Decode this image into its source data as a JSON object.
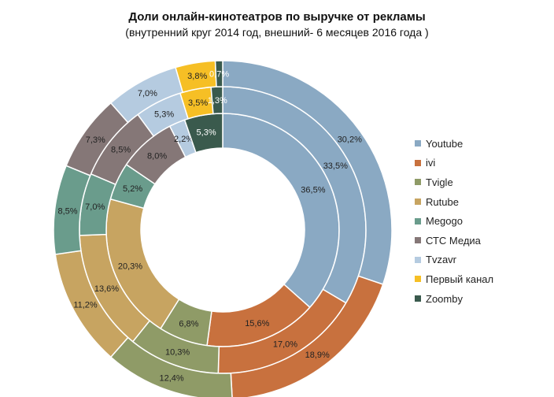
{
  "chart_data": {
    "type": "pie",
    "title": "Доли онлайн-кинотеатров по выручке от рекламы",
    "subtitle": "(внутренний круг 2014 год, внешний-  6 месяцев 2016 года )",
    "categories": [
      "Youtube",
      "ivi",
      "Tvigle",
      "Rutube",
      "Megogo",
      "СТС Медиа",
      "Tvzavr",
      "Первый канал",
      "Zoomby"
    ],
    "colors": [
      "#8aa9c3",
      "#c8713e",
      "#8f9b67",
      "#c7a461",
      "#6a9c8c",
      "#857777",
      "#b5cbe0",
      "#f6bf25",
      "#3a5a4d"
    ],
    "series": [
      {
        "ring": "inner",
        "values": [
          36.5,
          15.6,
          6.8,
          20.3,
          5.2,
          8.0,
          2.2,
          null,
          5.3
        ],
        "labels": [
          "36,5%",
          "15,6%",
          "6,8%",
          "20,3%",
          "5,2%",
          "8,0%",
          "2,2%",
          "",
          "5,3%"
        ]
      },
      {
        "ring": "middle",
        "values": [
          33.5,
          17.0,
          10.3,
          13.6,
          7.0,
          8.5,
          5.3,
          3.5,
          1.3
        ],
        "labels": [
          "33,5%",
          "17,0%",
          "10,3%",
          "13,6%",
          "7,0%",
          "8,5%",
          "5,3%",
          "3,5%",
          "1,3%"
        ]
      },
      {
        "ring": "outer",
        "values": [
          30.2,
          18.9,
          12.4,
          11.2,
          8.5,
          7.3,
          7.0,
          3.8,
          0.7
        ],
        "labels": [
          "30,2%",
          "18,9%",
          "12,4%",
          "11,2%",
          "8,5%",
          "7,3%",
          "7,0%",
          "3,8%",
          "0,7%"
        ]
      }
    ],
    "legend": {
      "position": "right",
      "items": [
        "Youtube",
        "ivi",
        "Tvigle",
        "Rutube",
        "Megogo",
        "СТС Медиа",
        "Tvzavr",
        "Первый канал",
        "Zoomby"
      ]
    }
  }
}
